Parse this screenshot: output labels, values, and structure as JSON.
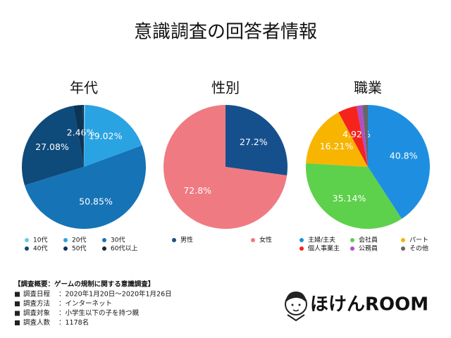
{
  "header": {
    "title": "意識調査の回答者情報"
  },
  "chart_data": [
    {
      "type": "pie",
      "title": "年代",
      "categories": [
        "10代",
        "20代",
        "30代",
        "40代",
        "50代",
        "60代以上"
      ],
      "values": [
        0.34,
        19.02,
        50.85,
        27.08,
        2.46,
        0.25
      ],
      "value_labels": [
        null,
        "19.02%",
        "50.85%",
        "27.08%",
        "2.46%",
        null
      ],
      "colors": [
        "#6cc6f2",
        "#2aa3e3",
        "#1673b6",
        "#0e4a7a",
        "#0b3558",
        "#1c2838"
      ]
    },
    {
      "type": "pie",
      "title": "性別",
      "categories": [
        "男性",
        "女性"
      ],
      "values": [
        27.2,
        72.8
      ],
      "value_labels": [
        "27.2%",
        "72.8%"
      ],
      "colors": [
        "#16508c",
        "#f07a82"
      ]
    },
    {
      "type": "pie",
      "title": "職業",
      "categories": [
        "主婦/主夫",
        "会社員",
        "パート",
        "個人事業主",
        "公務員",
        "その他"
      ],
      "values": [
        40.8,
        35.14,
        16.21,
        4.92,
        1.5,
        1.43
      ],
      "value_labels": [
        "40.8%",
        "35.14%",
        "16.21%",
        "4.92%",
        null,
        null
      ],
      "colors": [
        "#1e8fe0",
        "#5dd14b",
        "#f7b500",
        "#f5231c",
        "#b04fc8",
        "#666666"
      ]
    }
  ],
  "footer": {
    "heading": "【調査概要：ゲームの規制に関する意識調査】",
    "items": [
      {
        "label": "調査日程",
        "value": "：2020年1月20日〜2020年1月26日"
      },
      {
        "label": "調査方法",
        "value": "：インターネット"
      },
      {
        "label": "調査対象",
        "value": "：小学生以下の子を持つ親"
      },
      {
        "label": "調査人数",
        "value": "：1178名"
      }
    ]
  },
  "logo": "ほけんROOM"
}
